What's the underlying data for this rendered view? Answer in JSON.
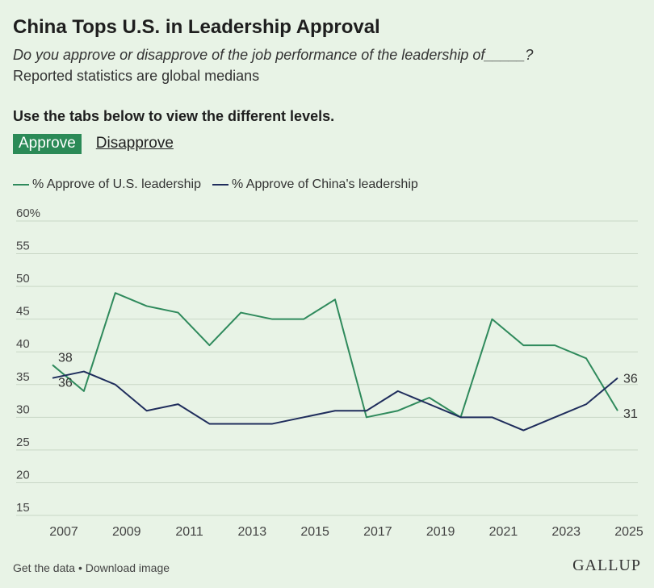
{
  "header": {
    "title": "China Tops U.S. in Leadership Approval",
    "subtitle": "Do you approve or disapprove of the job performance of the leadership of_____?",
    "note": "Reported statistics are global medians",
    "instruction": "Use the tabs below to view the different levels."
  },
  "tabs": [
    {
      "label": "Approve",
      "active": true
    },
    {
      "label": "Disapprove",
      "active": false
    }
  ],
  "colors": {
    "us": "#2f8a5c",
    "china": "#1f2d5c",
    "grid": "#c9d7c6",
    "background": "#e8f3e6"
  },
  "chart_data": {
    "type": "line",
    "x": [
      2007,
      2008,
      2009,
      2010,
      2011,
      2012,
      2013,
      2014,
      2015,
      2016,
      2017,
      2018,
      2019,
      2020,
      2021,
      2022,
      2023,
      2024,
      2025
    ],
    "xticks": [
      2007,
      2009,
      2011,
      2013,
      2015,
      2017,
      2019,
      2021,
      2023,
      2025
    ],
    "yticks": [
      15,
      20,
      25,
      30,
      35,
      40,
      45,
      50,
      55,
      60
    ],
    "ytick_labels": [
      "15",
      "20",
      "25",
      "30",
      "35",
      "40",
      "45",
      "50",
      "55",
      "60%"
    ],
    "ylim": [
      15,
      60
    ],
    "xlim": [
      2007,
      2025
    ],
    "grid": true,
    "legend_position": "top-left",
    "series": [
      {
        "name": "% Approve of U.S. leadership",
        "color_key": "us",
        "values": [
          38,
          34,
          49,
          47,
          46,
          41,
          46,
          45,
          45,
          48,
          30,
          31,
          33,
          30,
          45,
          41,
          41,
          39,
          31
        ],
        "start_label": "38",
        "end_label": "31"
      },
      {
        "name": "% Approve of China's leadership",
        "color_key": "china",
        "values": [
          36,
          37,
          35,
          31,
          32,
          29,
          29,
          29,
          30,
          31,
          31,
          34,
          32,
          30,
          30,
          28,
          30,
          32,
          36
        ],
        "start_label": "36",
        "end_label": "36"
      }
    ]
  },
  "footer": {
    "get_data": "Get the data",
    "separator": "•",
    "download": "Download image",
    "logo": "GALLUP"
  }
}
